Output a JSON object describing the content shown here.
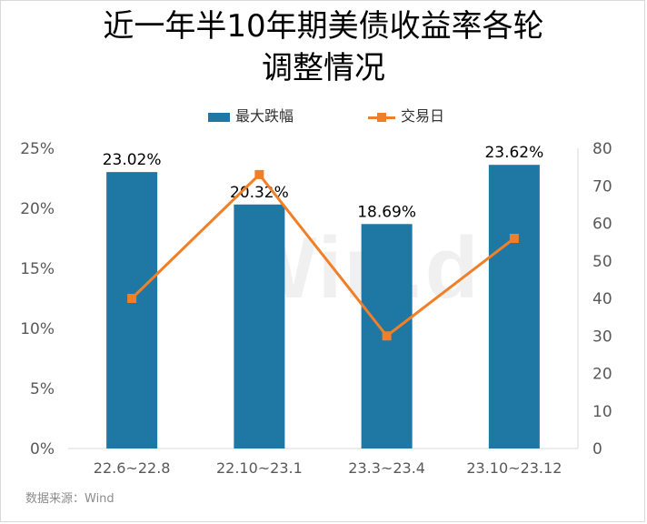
{
  "title": "近一年半10年期美债收益率各轮\n调整情况",
  "source": "数据来源：Wind",
  "watermark": "Win.d",
  "colors": {
    "bar": "#1f77a4",
    "line": "#f07f28",
    "axis_text": "#595959",
    "axis_line": "#d9d9d9"
  },
  "chart_data": {
    "type": "bar",
    "categories": [
      "22.6~22.8",
      "22.10~23.1",
      "23.3~23.4",
      "23.10~23.12"
    ],
    "series": [
      {
        "name": "最大跌幅",
        "type": "bar",
        "axis": "left",
        "values": [
          23.02,
          20.32,
          18.69,
          23.62
        ],
        "labels": [
          "23.02%",
          "20.32%",
          "18.69%",
          "23.62%"
        ]
      },
      {
        "name": "交易日",
        "type": "line",
        "axis": "right",
        "values": [
          40,
          73,
          30,
          56
        ]
      }
    ],
    "y_left": {
      "min": 0,
      "max": 25,
      "ticks": [
        "0%",
        "5%",
        "10%",
        "15%",
        "20%",
        "25%"
      ]
    },
    "y_right": {
      "min": 0,
      "max": 80,
      "ticks": [
        "0",
        "10",
        "20",
        "30",
        "40",
        "50",
        "60",
        "70",
        "80"
      ]
    },
    "legend_position": "top",
    "grid": false
  }
}
